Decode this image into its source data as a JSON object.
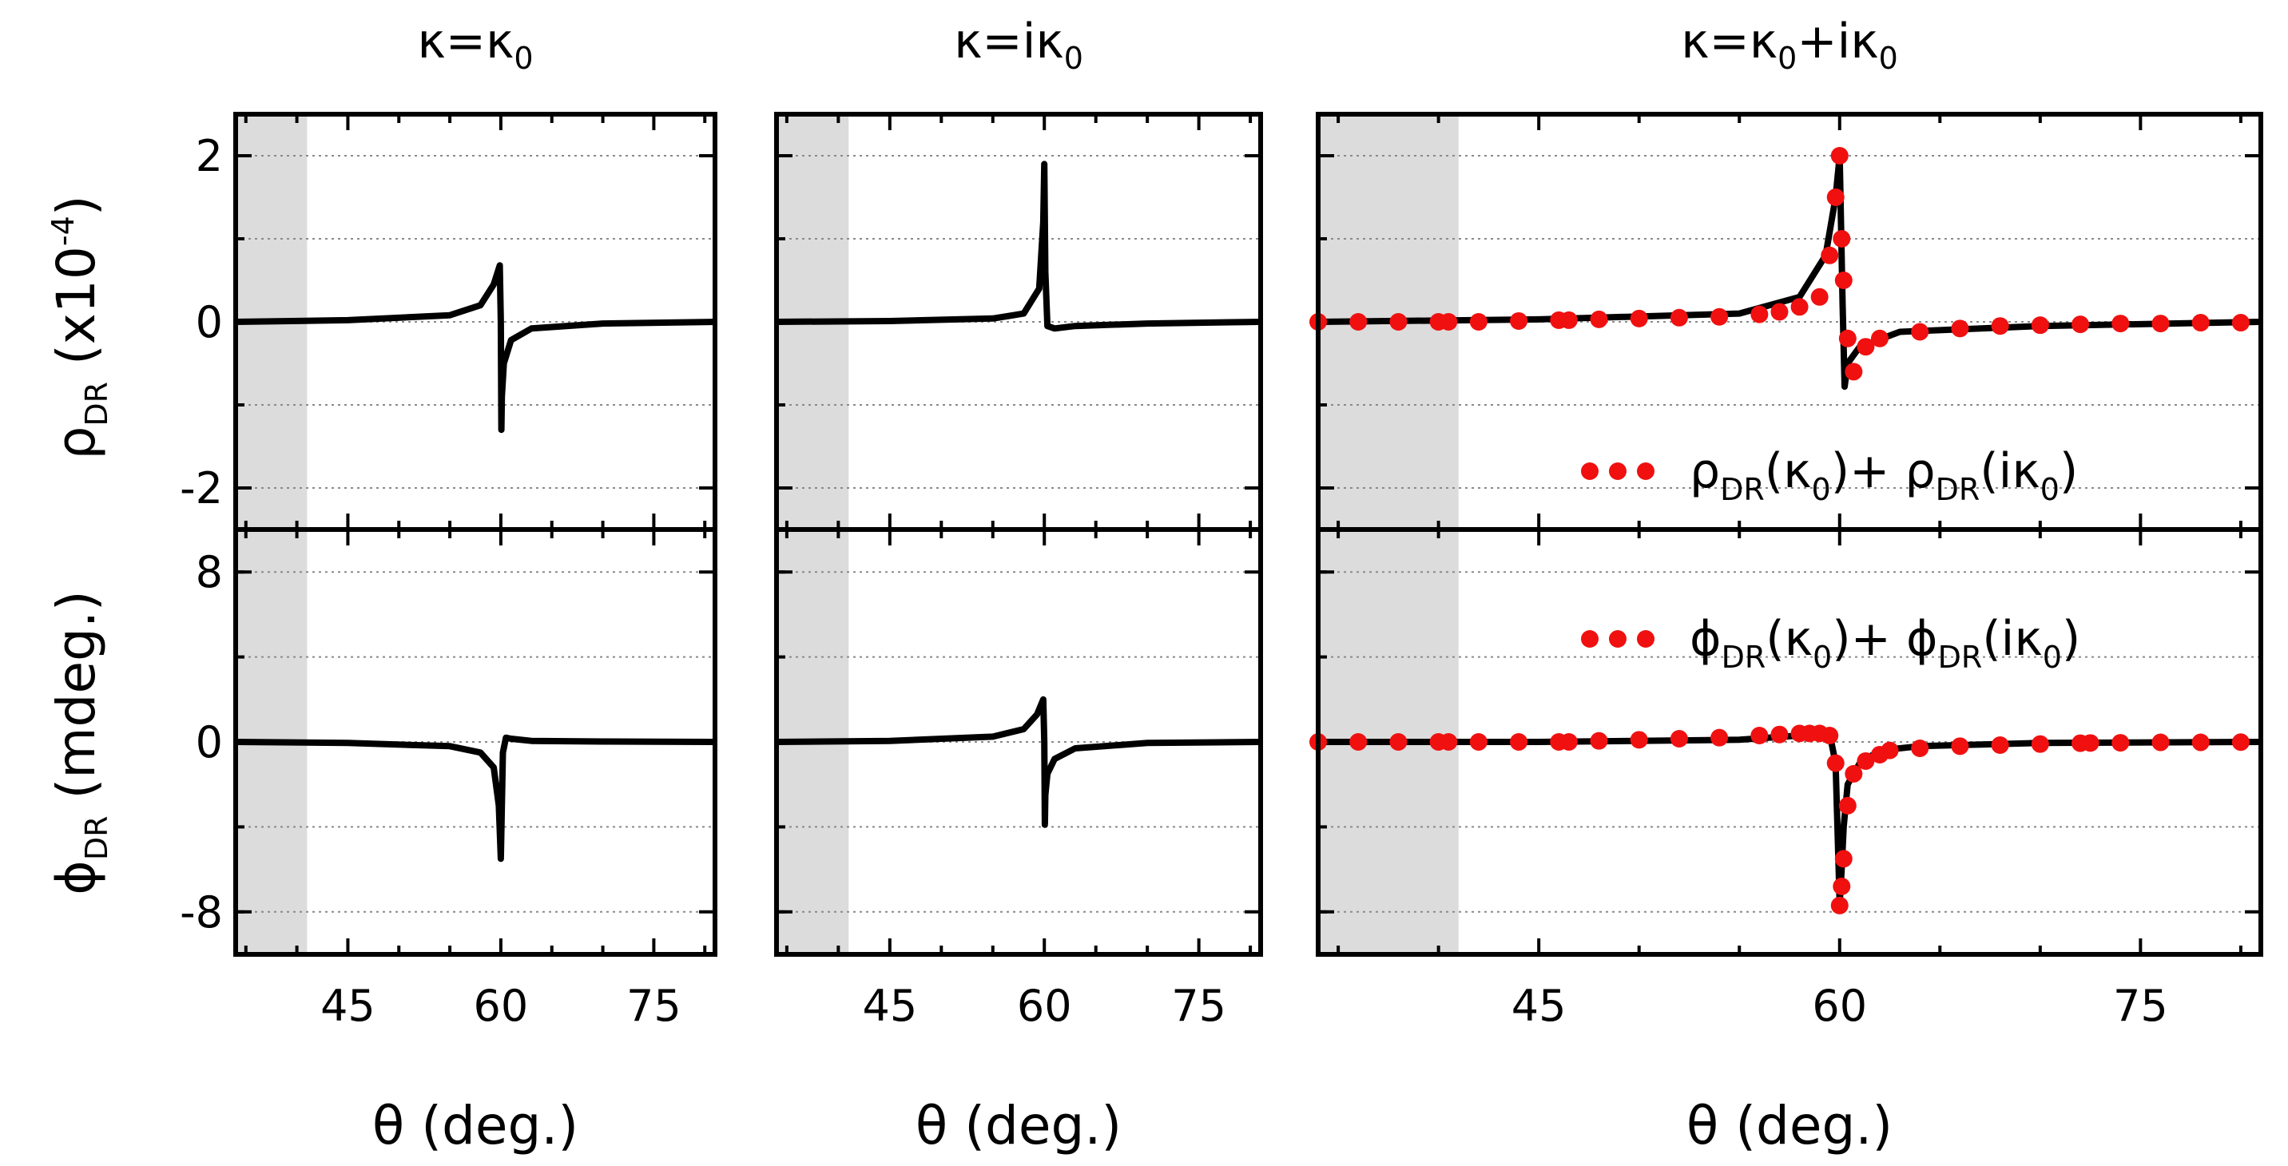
{
  "chart_data": [
    {
      "type": "line",
      "panel": "top-left",
      "title": "κ=κ0",
      "xlabel": "θ (deg.)",
      "ylabel": "ρDR (x10-4)",
      "xlim": [
        34,
        81
      ],
      "ylim": [
        -2.5,
        2.5
      ],
      "xticks": [
        45,
        60,
        75
      ],
      "yticks": [
        -2,
        0,
        2
      ],
      "shaded_region": [
        34,
        41
      ],
      "grid": "horizontal dotted",
      "series": [
        {
          "name": "ρDR(κ0)",
          "x": [
            34,
            45,
            55,
            58,
            59.3,
            59.9,
            60.0,
            60.05,
            60.1,
            60.3,
            61,
            63,
            70,
            81
          ],
          "y": [
            0,
            0.02,
            0.08,
            0.2,
            0.45,
            0.68,
            0.0,
            -1.3,
            -0.9,
            -0.5,
            -0.22,
            -0.08,
            -0.02,
            0
          ]
        }
      ]
    },
    {
      "type": "line",
      "panel": "top-middle",
      "title": "κ=iκ0",
      "xlabel": "θ (deg.)",
      "xlim": [
        34,
        81
      ],
      "ylim": [
        -2.5,
        2.5
      ],
      "xticks": [
        45,
        60,
        75
      ],
      "yticks": [
        -2,
        0,
        2
      ],
      "shaded_region": [
        34,
        41
      ],
      "grid": "horizontal dotted",
      "series": [
        {
          "name": "ρDR(iκ0)",
          "x": [
            34,
            45,
            55,
            58,
            59.5,
            59.9,
            60.0,
            60.1,
            60.3,
            61,
            63,
            70,
            81
          ],
          "y": [
            0,
            0.01,
            0.04,
            0.1,
            0.4,
            1.2,
            1.9,
            0.6,
            -0.05,
            -0.08,
            -0.05,
            -0.02,
            0
          ]
        }
      ]
    },
    {
      "type": "line",
      "panel": "top-right",
      "title": "κ=κ0+iκ0",
      "xlabel": "θ (deg.)",
      "xlim": [
        34,
        81
      ],
      "ylim": [
        -2.5,
        2.5
      ],
      "xticks": [
        45,
        60,
        75
      ],
      "yticks": [
        -2,
        0,
        2
      ],
      "shaded_region": [
        34,
        41
      ],
      "grid": "horizontal dotted",
      "legend": {
        "position": "bottom-right",
        "label_main": "ρ",
        "label_sub1": "DR",
        "label_arg1": "(κ",
        "label_sub2": "0",
        "label_mid": ")+ ",
        "label_main2": "ρ",
        "label_sub3": "DR",
        "label_arg2": "(iκ",
        "label_sub4": "0",
        "label_end": ")"
      },
      "series": [
        {
          "name": "ρDR(κ0+iκ0)",
          "x": [
            34,
            45,
            55,
            58,
            59.3,
            59.8,
            60.0,
            60.15,
            60.25,
            60.4,
            61,
            63,
            70,
            81
          ],
          "y": [
            0,
            0.03,
            0.1,
            0.3,
            0.8,
            1.5,
            2.0,
            0.2,
            -0.78,
            -0.5,
            -0.3,
            -0.12,
            -0.05,
            0
          ]
        },
        {
          "name": "ρDR(κ0)+ρDR(iκ0)",
          "style": "dots",
          "x": [
            34,
            36,
            38,
            40,
            40.5,
            42,
            44,
            46,
            46.5,
            48,
            50,
            52,
            54,
            56,
            57,
            58,
            59,
            59.5,
            59.8,
            60,
            60.1,
            60.2,
            60.4,
            60.7,
            61.3,
            62,
            64,
            66,
            68,
            70,
            72,
            74,
            76,
            78,
            80
          ],
          "y": [
            0,
            0,
            0,
            0,
            0,
            0,
            0.01,
            0.02,
            0.02,
            0.03,
            0.04,
            0.05,
            0.06,
            0.09,
            0.12,
            0.18,
            0.3,
            0.8,
            1.5,
            2.0,
            1.0,
            0.5,
            -0.2,
            -0.6,
            -0.3,
            -0.2,
            -0.12,
            -0.08,
            -0.05,
            -0.04,
            -0.03,
            -0.02,
            -0.02,
            -0.01,
            -0.01
          ]
        }
      ]
    },
    {
      "type": "line",
      "panel": "bottom-left",
      "xlabel": "θ (deg.)",
      "ylabel": "ϕDR (mdeg.)",
      "xlim": [
        34,
        81
      ],
      "ylim": [
        -10,
        10
      ],
      "xticks": [
        45,
        60,
        75
      ],
      "yticks": [
        -8,
        0,
        8
      ],
      "shaded_region": [
        34,
        41
      ],
      "grid": "horizontal dotted",
      "series": [
        {
          "name": "ϕDR(κ0)",
          "x": [
            34,
            45,
            55,
            58,
            59.3,
            59.8,
            60.0,
            60.2,
            60.5,
            61,
            63,
            70,
            81
          ],
          "y": [
            0,
            -0.05,
            -0.2,
            -0.5,
            -1.2,
            -3.0,
            -5.5,
            -0.5,
            0.2,
            0.15,
            0.05,
            0.02,
            0
          ]
        }
      ]
    },
    {
      "type": "line",
      "panel": "bottom-middle",
      "xlabel": "θ (deg.)",
      "xlim": [
        34,
        81
      ],
      "ylim": [
        -10,
        10
      ],
      "xticks": [
        45,
        60,
        75
      ],
      "yticks": [
        -8,
        0,
        8
      ],
      "shaded_region": [
        34,
        41
      ],
      "grid": "horizontal dotted",
      "series": [
        {
          "name": "ϕDR(iκ0)",
          "x": [
            34,
            45,
            55,
            58,
            59.3,
            59.9,
            60.0,
            60.05,
            60.1,
            60.3,
            61,
            63,
            70,
            81
          ],
          "y": [
            0,
            0.05,
            0.25,
            0.6,
            1.3,
            2.0,
            0.0,
            -3.9,
            -2.5,
            -1.5,
            -0.8,
            -0.3,
            -0.05,
            0
          ]
        }
      ]
    },
    {
      "type": "line",
      "panel": "bottom-right",
      "xlabel": "θ (deg.)",
      "xlim": [
        34,
        81
      ],
      "ylim": [
        -10,
        10
      ],
      "xticks": [
        45,
        60,
        75
      ],
      "yticks": [
        -8,
        0,
        8
      ],
      "shaded_region": [
        34,
        41
      ],
      "grid": "horizontal dotted",
      "legend": {
        "position": "top-right",
        "label_main": "ϕ",
        "label_sub1": "DR",
        "label_arg1": "(κ",
        "label_sub2": "0",
        "label_mid": ")+ ",
        "label_main2": "ϕ",
        "label_sub3": "DR",
        "label_arg2": "(iκ",
        "label_sub4": "0",
        "label_end": ")"
      },
      "series": [
        {
          "name": "ϕDR(κ0+iκ0)",
          "x": [
            34,
            45,
            55,
            58,
            59.5,
            59.8,
            60.0,
            60.1,
            60.2,
            60.4,
            61,
            62,
            64,
            70,
            81
          ],
          "y": [
            0,
            0,
            0.1,
            0.3,
            0.4,
            -1.0,
            -7.6,
            -6.0,
            -4.0,
            -2.0,
            -1.0,
            -0.4,
            -0.2,
            -0.05,
            0
          ]
        },
        {
          "name": "ϕDR(κ0)+ϕDR(iκ0)",
          "style": "dots",
          "x": [
            34,
            36,
            38,
            40,
            40.5,
            42,
            44,
            46,
            46.5,
            48,
            50,
            52,
            54,
            56,
            57,
            58,
            58.5,
            59,
            59.5,
            59.8,
            60,
            60.1,
            60.2,
            60.4,
            60.7,
            61.3,
            62,
            62.5,
            64,
            66,
            68,
            70,
            72,
            72.5,
            74,
            76,
            78,
            80
          ],
          "y": [
            0,
            0,
            0,
            0,
            0,
            0,
            0,
            0,
            0,
            0.05,
            0.1,
            0.15,
            0.2,
            0.3,
            0.35,
            0.4,
            0.4,
            0.4,
            0.3,
            -1.0,
            -7.7,
            -6.8,
            -5.5,
            -3.0,
            -1.5,
            -0.9,
            -0.6,
            -0.4,
            -0.3,
            -0.2,
            -0.15,
            -0.1,
            -0.06,
            -0.05,
            -0.04,
            -0.02,
            -0.02,
            -0.01
          ]
        }
      ]
    }
  ],
  "titles": {
    "left": {
      "main": "κ=κ",
      "sub": "0"
    },
    "middle": {
      "main": "κ=iκ",
      "sub": "0"
    },
    "right": {
      "main1": "κ=κ",
      "sub1": "0",
      "main2": "+iκ",
      "sub2": "0"
    }
  },
  "axis_labels": {
    "x": "θ (deg.)",
    "y_top": {
      "main": "ρ",
      "sub": "DR",
      "rest": " (x10",
      "sup": "-4",
      "close": ")"
    },
    "y_bottom": {
      "main": "ϕ",
      "sub": "DR",
      "rest": " (mdeg.)"
    }
  }
}
